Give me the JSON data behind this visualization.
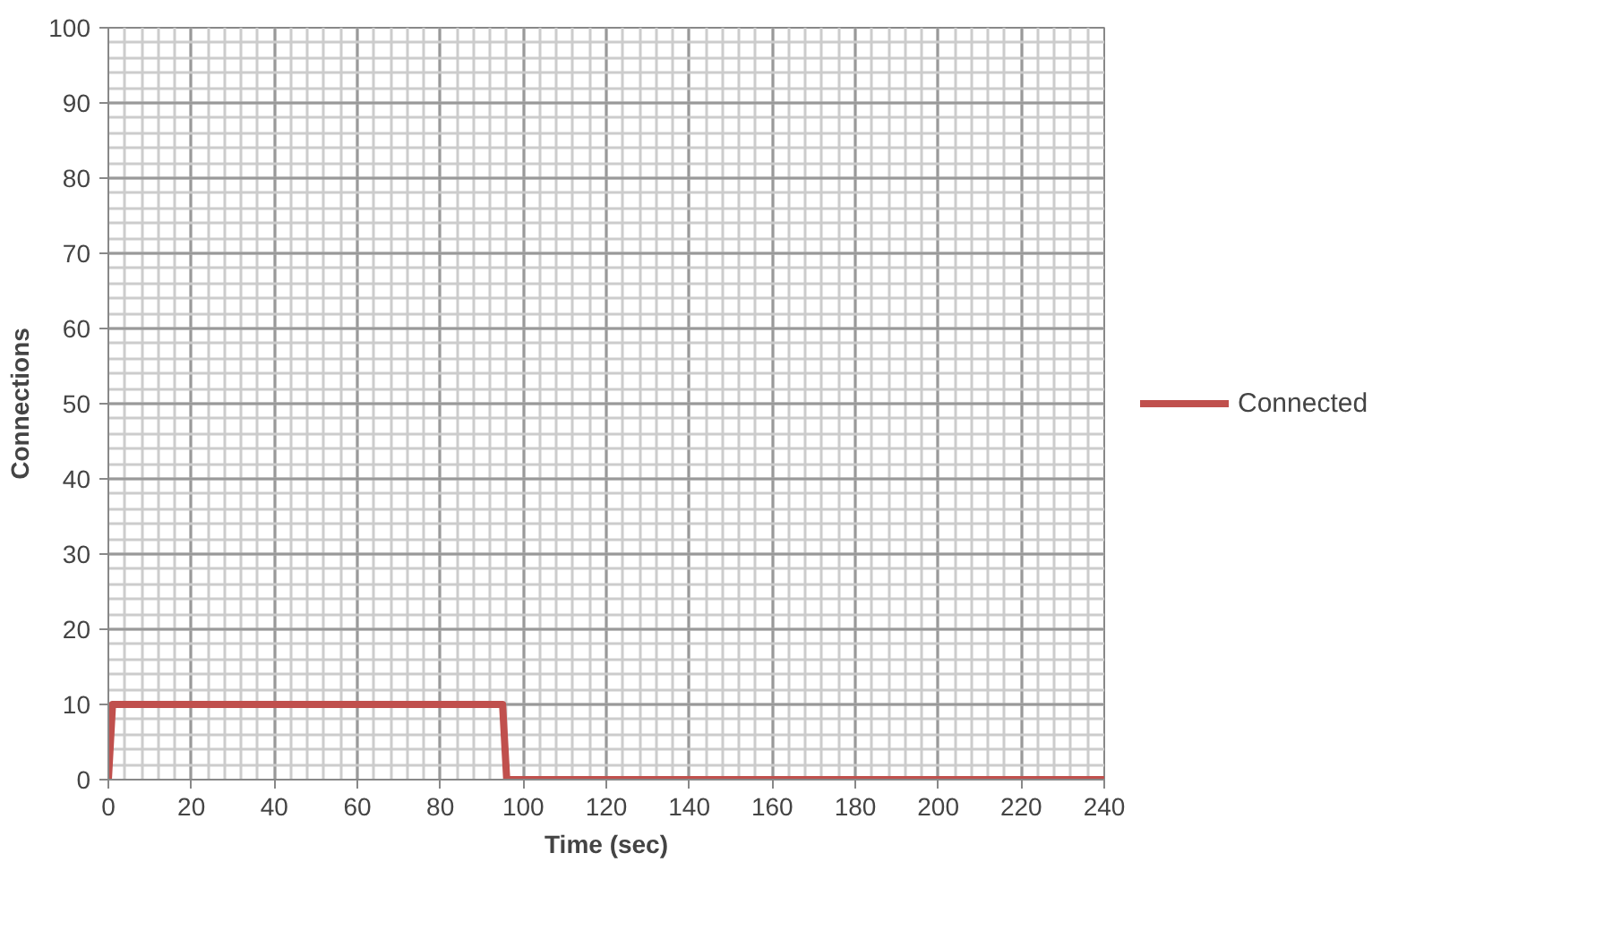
{
  "chart_data": {
    "type": "line",
    "xlabel": "Time (sec)",
    "ylabel": "Connections",
    "x": [
      0,
      1,
      95,
      96,
      240
    ],
    "series": [
      {
        "name": "Connected",
        "color": "#c0504d",
        "values": [
          0,
          10,
          10,
          0,
          0
        ]
      }
    ],
    "xlim": [
      0,
      240
    ],
    "ylim": [
      0,
      100
    ],
    "xticks": [
      0,
      20,
      40,
      60,
      80,
      100,
      120,
      140,
      160,
      180,
      200,
      220,
      240
    ],
    "yticks": [
      0,
      10,
      20,
      30,
      40,
      50,
      60,
      70,
      80,
      90,
      100
    ],
    "grid": true,
    "legend": "right",
    "marker": "none",
    "line_style": "solid"
  }
}
